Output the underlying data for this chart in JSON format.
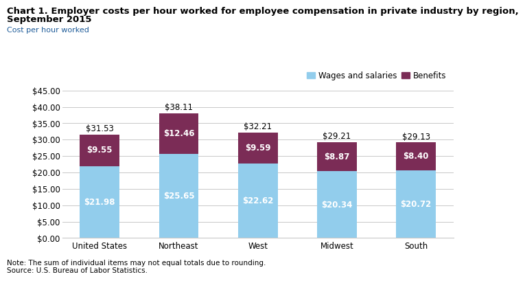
{
  "title_line1": "Chart 1. Employer costs per hour worked for employee compensation in private industry by region,",
  "title_line2": "September 2015",
  "ylabel": "Cost per hour worked",
  "categories": [
    "United States",
    "Northeast",
    "West",
    "Midwest",
    "South"
  ],
  "wages": [
    21.98,
    25.65,
    22.62,
    20.34,
    20.72
  ],
  "benefits": [
    9.55,
    12.46,
    9.59,
    8.87,
    8.4
  ],
  "totals": [
    31.53,
    38.11,
    32.21,
    29.21,
    29.13
  ],
  "wages_color": "#92CDEC",
  "benefits_color": "#7B2C56",
  "ylim": [
    0,
    45
  ],
  "yticks": [
    0,
    5,
    10,
    15,
    20,
    25,
    30,
    35,
    40,
    45
  ],
  "ytick_labels": [
    "$0.00",
    "$5.00",
    "$10.00",
    "$15.00",
    "$20.00",
    "$25.00",
    "$30.00",
    "$35.00",
    "$40.00",
    "$45.00"
  ],
  "legend_wages": "Wages and salaries",
  "legend_benefits": "Benefits",
  "note": "Note: The sum of individual items may not equal totals due to rounding.\nSource: U.S. Bureau of Labor Statistics.",
  "title_fontsize": 9.5,
  "ylabel_fontsize": 8,
  "axis_fontsize": 8.5,
  "label_fontsize": 8.5,
  "bar_width": 0.5,
  "background_color": "#ffffff",
  "grid_color": "#c8c8c8"
}
